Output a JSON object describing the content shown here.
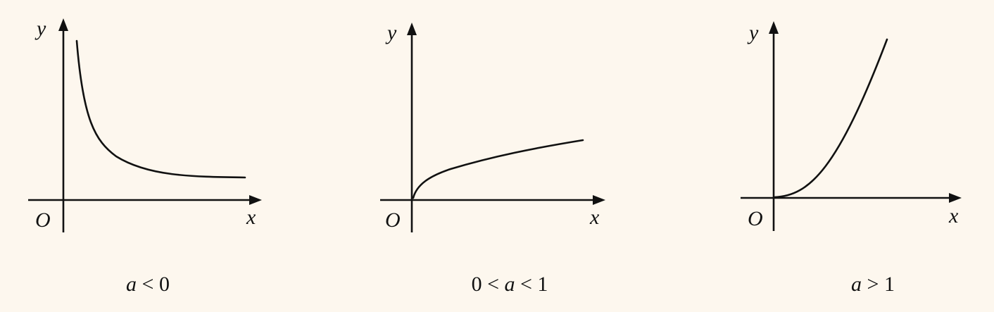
{
  "panels": [
    {
      "x_label": "x",
      "y_label": "y",
      "origin_label": "O",
      "caption": {
        "var": "a",
        "rest": " < 0"
      },
      "curve_shape": "decreasing"
    },
    {
      "x_label": "x",
      "y_label": "y",
      "origin_label": "O",
      "caption": {
        "pre": "0 < ",
        "var": "a",
        "rest": " < 1"
      },
      "curve_shape": "concave-increasing"
    },
    {
      "x_label": "x",
      "y_label": "y",
      "origin_label": "O",
      "caption": {
        "var": "a",
        "rest": " > 1"
      },
      "curve_shape": "convex-increasing"
    }
  ],
  "colors": {
    "background": "#fdf7ee",
    "ink": "#111111"
  }
}
